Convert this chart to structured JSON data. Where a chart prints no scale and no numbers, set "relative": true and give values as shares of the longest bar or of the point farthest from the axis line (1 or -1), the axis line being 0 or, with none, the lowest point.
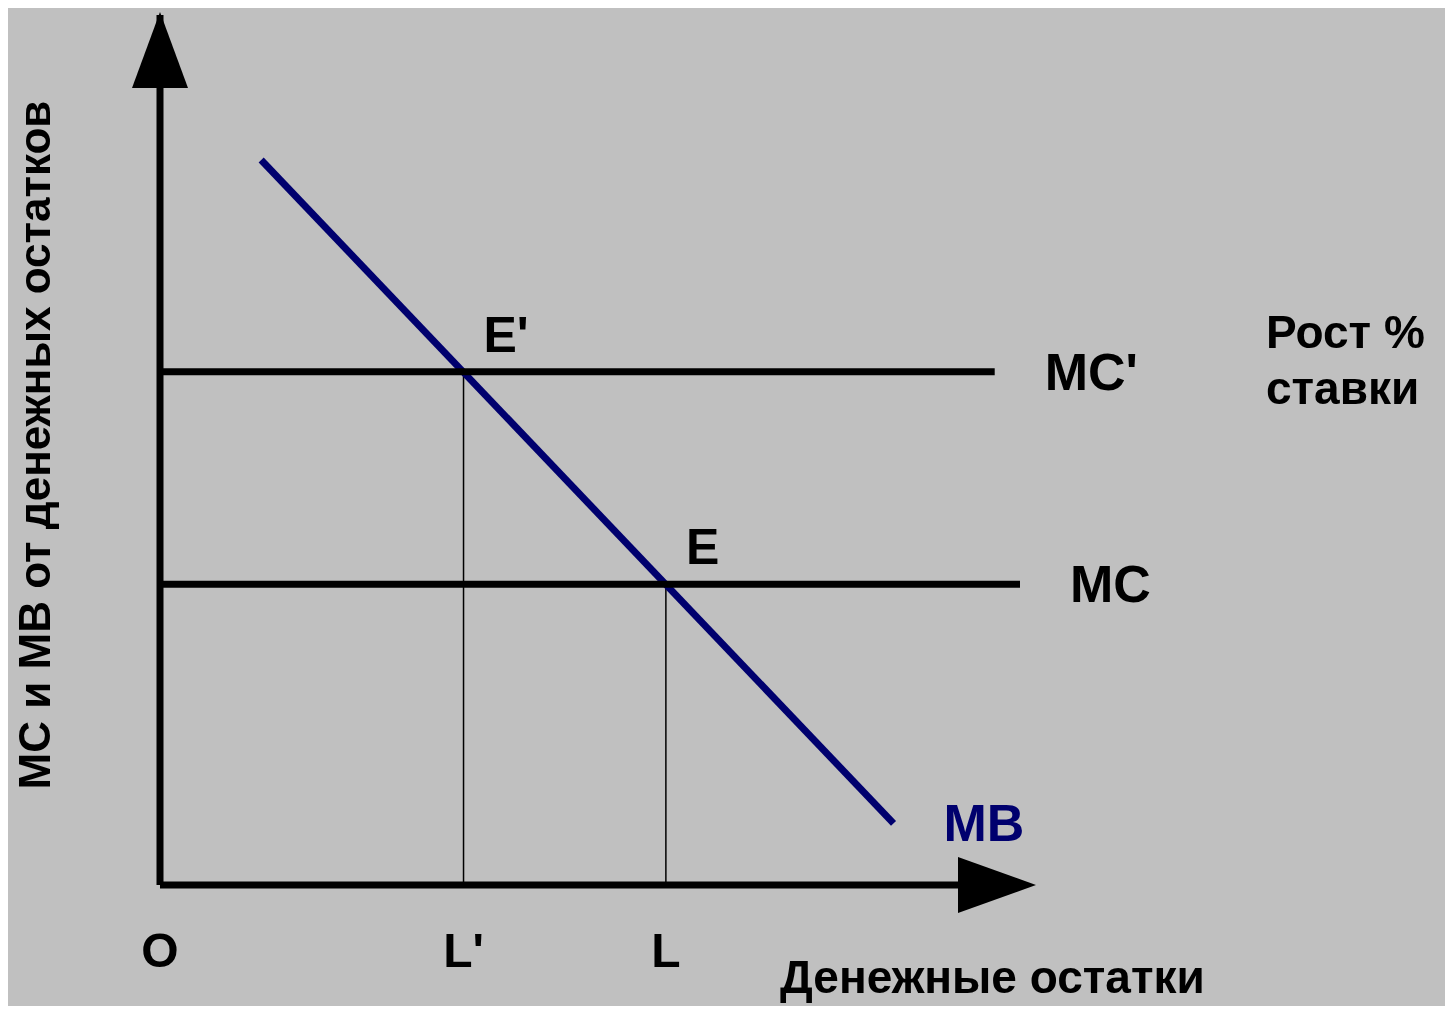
{
  "chart_data": {
    "type": "line",
    "relative": true,
    "xlabel": "Денежные остатки",
    "ylabel": "MC и MB от денежных остатков",
    "marker": "none",
    "line_style": "solid",
    "categories": [
      "O",
      null,
      null,
      null,
      null,
      null,
      null,
      null,
      null,
      null,
      null,
      null,
      "L'",
      null,
      null,
      null,
      null,
      null,
      null,
      null,
      "L",
      null,
      null,
      null,
      null,
      null,
      null,
      null,
      null,
      null,
      null,
      null,
      null,
      null,
      null
    ],
    "series": [
      {
        "name": "MB",
        "color": "#00006e",
        "values": [
          null,
          null,
          null,
          null,
          1,
          null,
          null,
          null,
          null,
          null,
          null,
          null,
          null,
          null,
          null,
          null,
          null,
          null,
          null,
          null,
          null,
          null,
          null,
          null,
          null,
          null,
          null,
          null,
          null,
          0.085,
          null,
          null,
          null,
          null,
          null
        ]
      },
      {
        "name": "MC'",
        "color": "#000000",
        "values": [
          0.708,
          null,
          null,
          null,
          null,
          null,
          null,
          null,
          null,
          null,
          null,
          null,
          null,
          null,
          null,
          null,
          null,
          null,
          null,
          null,
          null,
          null,
          null,
          null,
          null,
          null,
          null,
          null,
          null,
          null,
          null,
          null,
          null,
          0.708,
          null
        ]
      },
      {
        "name": "MC",
        "color": "#000000",
        "values": [
          0.415,
          null,
          null,
          null,
          null,
          null,
          null,
          null,
          null,
          null,
          null,
          null,
          null,
          null,
          null,
          null,
          null,
          null,
          null,
          null,
          null,
          null,
          null,
          null,
          null,
          null,
          null,
          null,
          null,
          null,
          null,
          null,
          null,
          null,
          0.415
        ]
      }
    ],
    "ref_lines": [
      {
        "axis": "x",
        "value": "L'",
        "color": "#000000"
      },
      {
        "axis": "x",
        "value": "L",
        "color": "#000000"
      }
    ],
    "annotations": [
      {
        "text": "E'",
        "x": "L'",
        "y": 0.708
      },
      {
        "text": "E",
        "x": "L",
        "y": 0.415
      },
      "Рост % ставки"
    ]
  }
}
